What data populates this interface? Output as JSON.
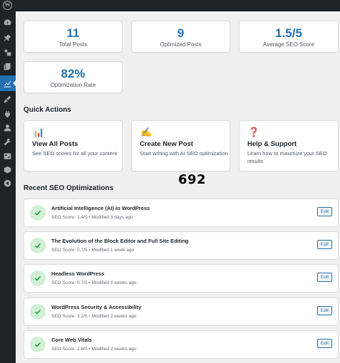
{
  "stats": [
    {
      "value": "11",
      "label": "Total Posts"
    },
    {
      "value": "9",
      "label": "Optimized Posts"
    },
    {
      "value": "1.5/5",
      "label": "Average SEO Score"
    },
    {
      "value": "82%",
      "label": "Optimization Rate"
    }
  ],
  "quick_actions": {
    "title": "Quick Actions",
    "items": [
      {
        "icon": "bar-chart-icon",
        "emoji": "📊",
        "title": "View All Posts",
        "desc": "See SEO scores for all your content"
      },
      {
        "icon": "writing-hand-icon",
        "emoji": "✍",
        "title": "Create New Post",
        "desc": "Start writing with AI SEO optimization"
      },
      {
        "icon": "question-icon",
        "emoji": "❓",
        "title": "Help & Support",
        "desc": "Learn how to maximize your SEO results"
      }
    ]
  },
  "overlay_number": "692",
  "recent": {
    "title": "Recent SEO Optimizations",
    "edit_label": "Edit",
    "items": [
      {
        "title": "Artificial Intelligence (AI) in WordPress",
        "meta": "SEO Score: 1.4/5 • Modified 3 days ago"
      },
      {
        "title": "The Evolution of the Block Editor and Full Site Editing",
        "meta": "SEO Score: 0.7/5 • Modified 1 week ago"
      },
      {
        "title": "Headless WordPress",
        "meta": "SEO Score: 0.7/5 • Modified 2 weeks ago"
      },
      {
        "title": "WordPress Security & Accessibility",
        "meta": "SEO Score: 3.2/5 • Modified 2 weeks ago"
      },
      {
        "title": "Core Web Vitals",
        "meta": "SEO Score: 2.8/5 • Modified 2 weeks ago"
      }
    ]
  },
  "colors": {
    "accent": "#2271b1",
    "sidebar": "#1d2327",
    "success_bg": "#d1f0d6",
    "success": "#00a32a"
  }
}
